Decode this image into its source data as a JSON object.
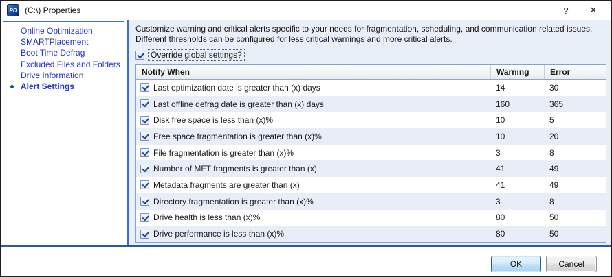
{
  "window": {
    "title": "(C:\\) Properties",
    "icon_text": "PD",
    "help_label": "?",
    "close_label": "✕"
  },
  "sidebar": {
    "items": [
      {
        "label": "Online Optimization",
        "active": false
      },
      {
        "label": "SMARTPlacement",
        "active": false
      },
      {
        "label": "Boot Time Defrag",
        "active": false
      },
      {
        "label": "Excluded Files and Folders",
        "active": false
      },
      {
        "label": "Drive Information",
        "active": false
      },
      {
        "label": "Alert Settings",
        "active": true
      }
    ]
  },
  "panel": {
    "description": "Customize warning and critical alerts specific to your needs for fragmentation, scheduling, and communication related issues.  Different thresholds can be configured for less critical warnings and more critical alerts.",
    "override": {
      "label": "Override global settings?",
      "checked": true
    },
    "table": {
      "columns": [
        "Notify When",
        "Warning",
        "Error"
      ],
      "rows": [
        {
          "checked": true,
          "label": "Last optimization date is greater than (x) days",
          "warning": "14",
          "error": "30"
        },
        {
          "checked": true,
          "label": "Last offline defrag date is greater than (x) days",
          "warning": "160",
          "error": "365"
        },
        {
          "checked": true,
          "label": "Disk free space is less than (x)%",
          "warning": "10",
          "error": "5"
        },
        {
          "checked": true,
          "label": "Free space fragmentation is greater than (x)%",
          "warning": "10",
          "error": "20"
        },
        {
          "checked": true,
          "label": "File fragmentation is greater than (x)%",
          "warning": "3",
          "error": "8"
        },
        {
          "checked": true,
          "label": "Number of MFT fragments is greater than (x)",
          "warning": "41",
          "error": "49"
        },
        {
          "checked": true,
          "label": "Metadata fragments are greater than (x)",
          "warning": "41",
          "error": "49"
        },
        {
          "checked": true,
          "label": "Directory fragmentation is greater than (x)%",
          "warning": "3",
          "error": "8"
        },
        {
          "checked": true,
          "label": "Drive health is less than (x)%",
          "warning": "80",
          "error": "50"
        },
        {
          "checked": true,
          "label": "Drive performance is less than (x)%",
          "warning": "80",
          "error": "50"
        }
      ]
    }
  },
  "footer": {
    "ok_label": "OK",
    "cancel_label": "Cancel"
  },
  "colors": {
    "accent_link": "#2233CC",
    "divider_blue": "#3E6DC6",
    "bottom_rule_blue": "#2E56A3",
    "panel_bg": "#E9EFF8",
    "row_alt_bg": "#E7EEF8",
    "sidebar_border": "#4472C4",
    "table_border": "#7FA3D7"
  }
}
